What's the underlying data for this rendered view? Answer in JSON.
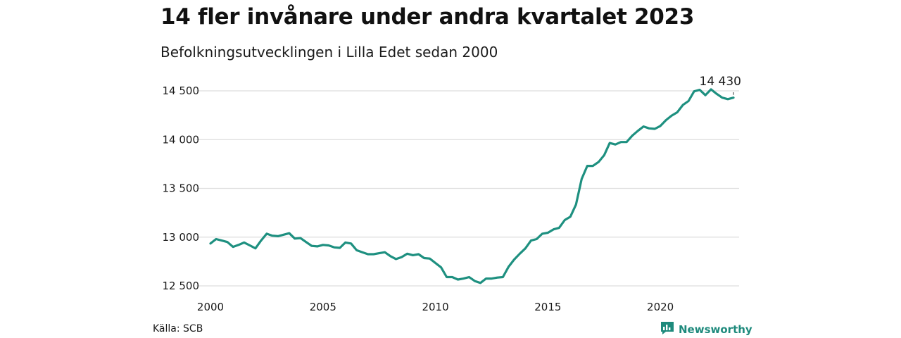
{
  "header": {
    "title": "14 fler invånare under andra kvartalet 2023",
    "subtitle": "Befolkningsutvecklingen i Lilla Edet sedan 2000"
  },
  "footer": {
    "source": "Källa: SCB",
    "brand": "Newsworthy",
    "brand_icon": "chart-logo-icon"
  },
  "colors": {
    "line": "#1e9080",
    "grid": "#dddddd",
    "brand": "#1e8a7c"
  },
  "chart_data": {
    "type": "line",
    "title": "14 fler invånare under andra kvartalet 2023",
    "subtitle": "Befolkningsutvecklingen i Lilla Edet sedan 2000",
    "xlabel": "",
    "ylabel": "",
    "xlim": [
      2000,
      2023.5
    ],
    "ylim": [
      12500,
      14500
    ],
    "grid": true,
    "x_ticks": [
      2000,
      2005,
      2010,
      2015,
      2020
    ],
    "x_tick_labels": [
      "2000",
      "2005",
      "2010",
      "2015",
      "2020"
    ],
    "y_ticks": [
      12500,
      13000,
      13500,
      14000,
      14500
    ],
    "y_tick_labels": [
      "12 500",
      "13 000",
      "13 500",
      "14 000",
      "14 500"
    ],
    "annotation": {
      "x": 2023.25,
      "y": 14430,
      "label": "14 430"
    },
    "series": [
      {
        "x": [
          2000.0,
          2000.25,
          2000.5,
          2000.75,
          2001.0,
          2001.25,
          2001.5,
          2001.75,
          2002.0,
          2002.25,
          2002.5,
          2002.75,
          2003.0,
          2003.25,
          2003.5,
          2003.75,
          2004.0,
          2004.25,
          2004.5,
          2004.75,
          2005.0,
          2005.25,
          2005.5,
          2005.75,
          2006.0,
          2006.25,
          2006.5,
          2006.75,
          2007.0,
          2007.25,
          2007.5,
          2007.75,
          2008.0,
          2008.25,
          2008.5,
          2008.75,
          2009.0,
          2009.25,
          2009.5,
          2009.75,
          2010.0,
          2010.25,
          2010.5,
          2010.75,
          2011.0,
          2011.25,
          2011.5,
          2011.75,
          2012.0,
          2012.25,
          2012.5,
          2012.75,
          2013.0,
          2013.25,
          2013.5,
          2013.75,
          2014.0,
          2014.25,
          2014.5,
          2014.75,
          2015.0,
          2015.25,
          2015.5,
          2015.75,
          2016.0,
          2016.25,
          2016.5,
          2016.75,
          2017.0,
          2017.25,
          2017.5,
          2017.75,
          2018.0,
          2018.25,
          2018.5,
          2018.75,
          2019.0,
          2019.25,
          2019.5,
          2019.75,
          2020.0,
          2020.25,
          2020.5,
          2020.75,
          2021.0,
          2021.25,
          2021.5,
          2021.75,
          2022.0,
          2022.25,
          2022.5,
          2022.75,
          2023.0,
          2023.25
        ],
        "values": [
          12935,
          12980,
          12965,
          12950,
          12900,
          12920,
          12945,
          12915,
          12885,
          12965,
          13035,
          13015,
          13010,
          13025,
          13040,
          12985,
          12990,
          12950,
          12910,
          12905,
          12920,
          12915,
          12895,
          12890,
          12945,
          12935,
          12865,
          12845,
          12825,
          12825,
          12835,
          12845,
          12805,
          12775,
          12795,
          12830,
          12815,
          12825,
          12785,
          12780,
          12735,
          12690,
          12590,
          12590,
          12565,
          12575,
          12590,
          12550,
          12530,
          12575,
          12575,
          12585,
          12590,
          12695,
          12770,
          12830,
          12885,
          12965,
          12980,
          13035,
          13045,
          13080,
          13095,
          13175,
          13210,
          13335,
          13595,
          13730,
          13730,
          13770,
          13840,
          13965,
          13950,
          13975,
          13975,
          14040,
          14090,
          14135,
          14115,
          14110,
          14140,
          14200,
          14245,
          14280,
          14355,
          14395,
          14495,
          14510,
          14455,
          14515,
          14470,
          14430,
          14415,
          14430
        ]
      }
    ]
  }
}
